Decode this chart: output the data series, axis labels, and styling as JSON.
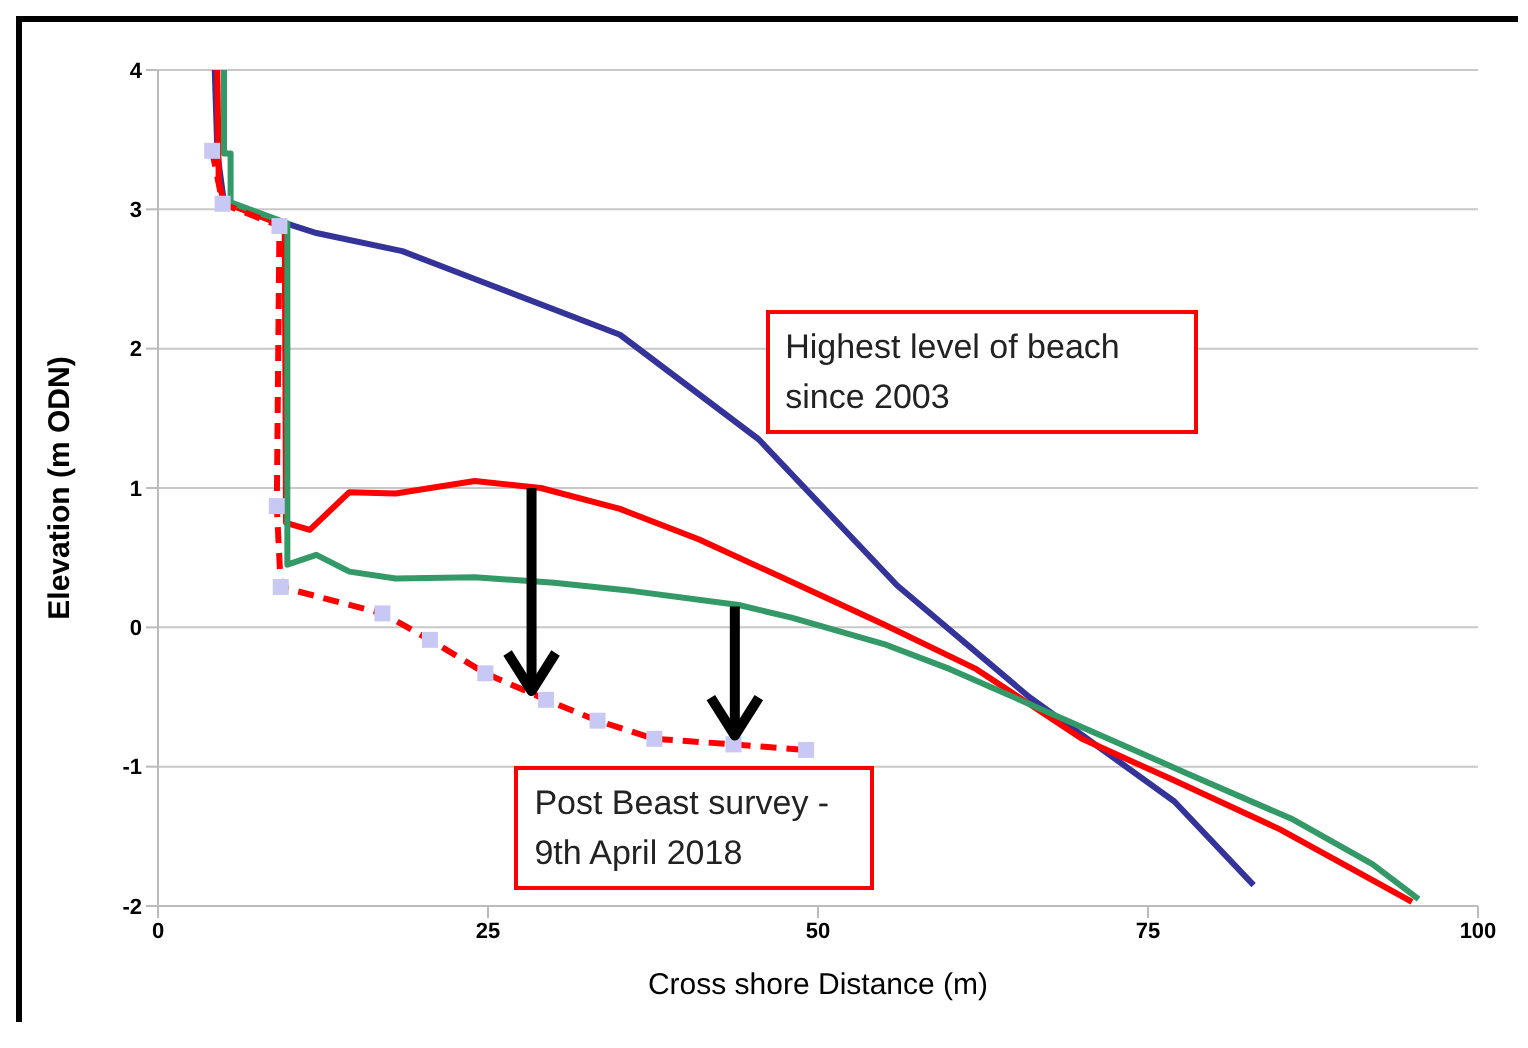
{
  "chart_data": {
    "type": "line",
    "xlabel": "Cross shore Distance (m)",
    "ylabel": "Elevation (m ODN)",
    "xlim": [
      0,
      100
    ],
    "xticks": [
      0,
      25,
      50,
      75,
      100
    ],
    "ylim": [
      -2,
      4
    ],
    "yticks": [
      -2,
      -1,
      0,
      1,
      2,
      3,
      4
    ],
    "grid": "y",
    "marker": "none",
    "line_style": "solid",
    "annotations": [
      "Highest level of beach since 2003",
      "Post Beast survey - 9th April 2018"
    ],
    "series": [
      {
        "color": "#333399",
        "x": [
          4.3,
          4.5,
          5,
          9,
          12,
          18.5,
          24,
          35,
          45.5,
          56,
          66,
          77,
          83
        ],
        "values": [
          4,
          3.4,
          3.05,
          2.92,
          2.83,
          2.7,
          2.5,
          2.1,
          1.35,
          0.3,
          -0.5,
          -1.25,
          -1.85
        ]
      },
      {
        "color": "#ff0000",
        "x": [
          4.5,
          4.6,
          5,
          9.6,
          9.7,
          11.5,
          14.5,
          18,
          24,
          29,
          35,
          41,
          47,
          55,
          62,
          70,
          77,
          85,
          95
        ],
        "values": [
          4,
          3.2,
          3.05,
          2.88,
          0.75,
          0.7,
          0.97,
          0.96,
          1.05,
          1,
          0.85,
          0.63,
          0.37,
          0.02,
          -0.3,
          -0.8,
          -1.1,
          -1.45,
          -1.97
        ]
      },
      {
        "color": "#339966",
        "x": [
          5,
          5,
          5.5,
          5.5,
          9.8,
          9.8,
          12,
          14.5,
          18,
          24,
          30,
          36,
          44,
          48,
          55,
          60,
          66,
          72,
          78,
          86,
          92,
          95.5
        ],
        "values": [
          4,
          3.4,
          3.4,
          3.05,
          2.9,
          0.45,
          0.52,
          0.4,
          0.35,
          0.36,
          0.32,
          0.26,
          0.16,
          0.07,
          -0.12,
          -0.3,
          -0.55,
          -0.8,
          -1.05,
          -1.38,
          -1.7,
          -1.95
        ]
      },
      {
        "color": "#ff0000",
        "marker": "square",
        "line_style": "dashed",
        "x": [
          4.1,
          4.9,
          9.2,
          9,
          9.3,
          17,
          20.6,
          24.8,
          29.4,
          33.3,
          37.6,
          43.6,
          49.1
        ],
        "values": [
          3.42,
          3.04,
          2.88,
          0.87,
          0.29,
          0.1,
          -0.09,
          -0.33,
          -0.52,
          -0.67,
          -0.8,
          -0.84,
          -0.88
        ]
      }
    ]
  }
}
